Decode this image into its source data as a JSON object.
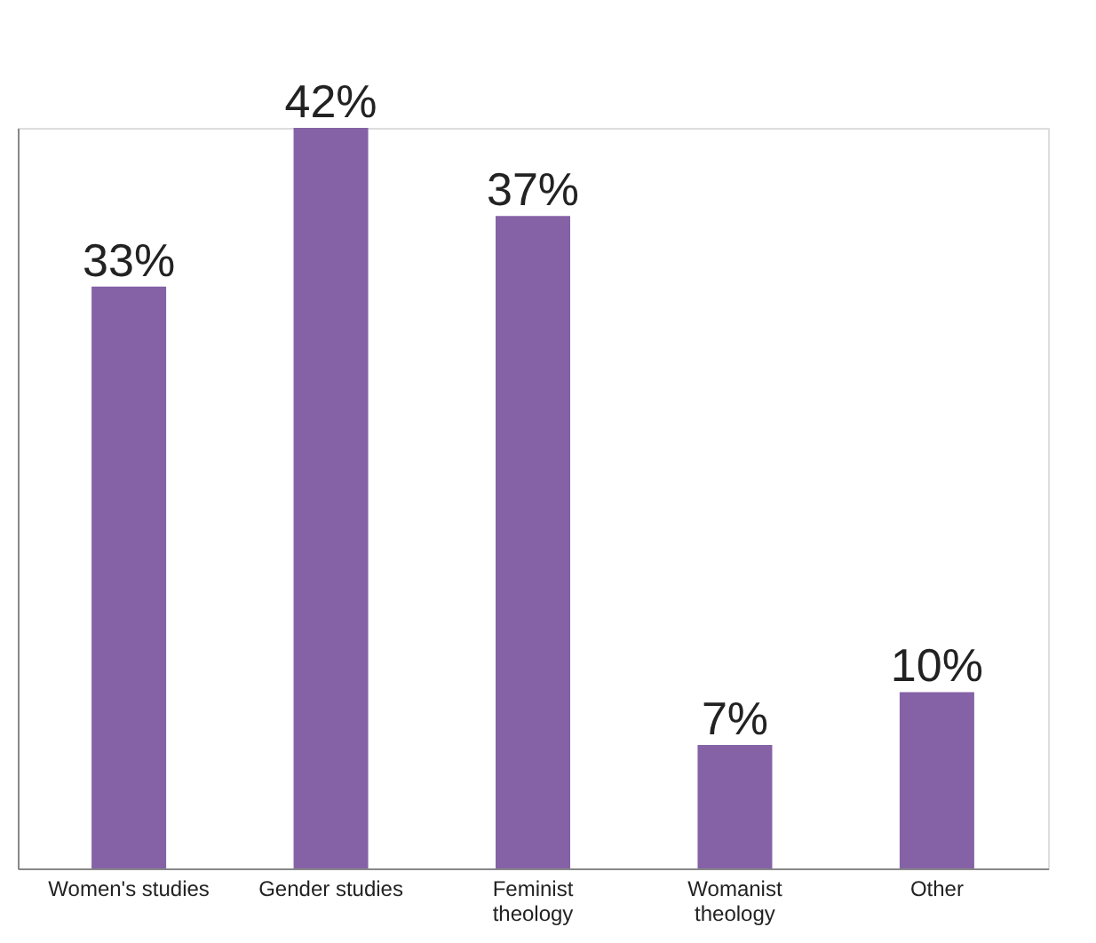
{
  "chart_data": {
    "type": "bar",
    "categories": [
      "Women's studies",
      "Gender studies",
      "Feminist theology",
      "Womanist theology",
      "Other"
    ],
    "values": [
      33,
      42,
      37,
      7,
      10
    ],
    "value_labels": [
      "33%",
      "42%",
      "37%",
      "7%",
      "10%"
    ],
    "color": "#8561a6",
    "grid": false
  }
}
